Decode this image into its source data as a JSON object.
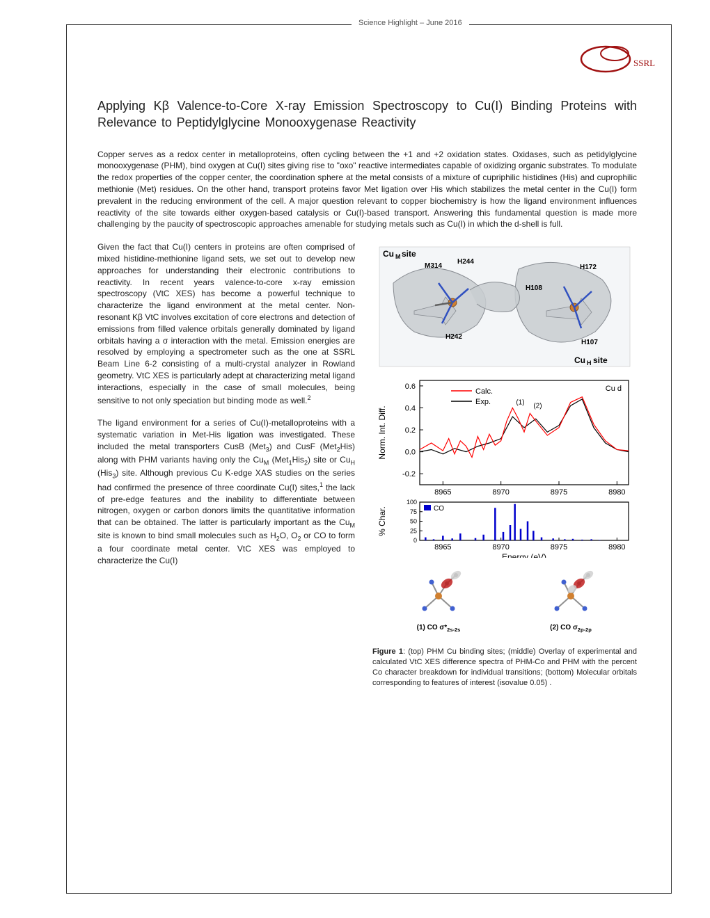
{
  "header": {
    "label": "Science Highlight – June 2016",
    "logo_text": "SSRL",
    "logo_color": "#a01010"
  },
  "title": "Applying Kβ Valence-to-Core X‑ray Emission Spectroscopy to Cu(I) Binding Proteins with Relevance to Peptidylglycine Monooxygenase Reactivity",
  "paragraphs": {
    "p1": "Copper serves as a redox center in metalloproteins, often cycling between the +1 and +2 oxidation states. Oxidases, such as petidylglycine monooxygenase (PHM), bind oxygen at Cu(I) sites giving rise to \"oxo\" reactive intermediates capable of oxidizing organic substrates. To modulate the redox properties of the copper center, the coordination sphere at the metal consists of a mixture of cupriphilic histidines (His) and cuprophilic methionie (Met) residues. On the other hand, transport proteins favor Met ligation over His which stabilizes the metal center in the Cu(I) form prevalent in the reducing environment of the cell. A major question relevant to copper biochemistry is how the ligand environment influences reactivity of the site towards either oxygen-based catalysis or Cu(I)-based transport.  Answering this fundamental question is made more challenging by the paucity of spectroscopic approaches amenable for studying metals such as Cu(I) in which the d-shell is full.",
    "p2_pre": "Given the fact that Cu(I) centers in proteins are often comprised of mixed histidine-methionine ligand sets, we set out to develop new approaches for understanding their electronic contributions to reactivity.  In recent years valence-to-core x-ray emission spectroscopy (VtC XES) has become a powerful technique to characterize the ligand environment at the metal center. Non-resonant Kβ VtC involves excitation of core electrons and detection of emissions from filled valence orbitals generally dominated by ligand orbitals having a σ interaction with the metal. Emission energies are resolved by employing a spectrometer such as the one at SSRL Beam Line 6-2 consisting of a multi-crystal analyzer in Rowland geometry. VtC XES is particularly adept at characterizing metal ligand interactions, especially in the case of small molecules, being sensitive to not only speciation but binding mode as well.",
    "p2_sup": "2",
    "p3_pre": "The ligand environment for a series of Cu(I)-metalloproteins with a systematic variation in Met-His ligation was investigated. These included the metal transporters CusB (Met",
    "p3_sub1": "3",
    "p3_mid1": ") and CusF (Met",
    "p3_sub2": "2",
    "p3_mid2": "His) along with PHM variants having only the Cu",
    "p3_sub3": "M",
    "p3_mid3": " (Met",
    "p3_sub4": "1",
    "p3_mid4": "His",
    "p3_sub5": "2",
    "p3_mid5": ") site or Cu",
    "p3_sub6": "H",
    "p3_mid6": " (His",
    "p3_sub7": "3",
    "p3_mid7": ") site. Although previous Cu K-edge XAS studies on the series had confirmed the presence of three coordinate Cu(I) sites,",
    "p3_sup1": "1",
    "p3_mid8": " the lack of pre-edge features and the inability to differentiate between nitrogen, oxygen or carbon donors limits the quantitative information that can be obtained. The latter is particularly important as the Cu",
    "p3_sub8": "M",
    "p3_mid9": " site is known to bind small molecules such as H",
    "p3_sub9": "2",
    "p3_mid10": "O, O",
    "p3_sub10": "2",
    "p3_mid11": " or CO to form a four coordinate metal center. VtC XES was employed to characterize the Cu(I)"
  },
  "figure": {
    "protein": {
      "site_m_label": "CuM site",
      "site_h_label": "CuH site",
      "residues": {
        "m314": "M314",
        "h244": "H244",
        "h172": "H172",
        "h108": "H108",
        "h242": "H242",
        "h107": "H107"
      },
      "ribbon_color": "#c8ccd0",
      "ribbon_dark": "#888c92",
      "cu_color": "#d08030",
      "stick_n_color": "#3050c0",
      "stick_c_color": "#606060"
    },
    "chart_top": {
      "type": "line",
      "title_top_right": "Cu d",
      "legend": [
        {
          "label": "Calc.",
          "color": "#ff0000"
        },
        {
          "label": "Exp.",
          "color": "#000000"
        }
      ],
      "annotations": [
        "(1)",
        "(2)"
      ],
      "ylabel": "Norm. Int. Diff.",
      "xlim": [
        8963,
        8981
      ],
      "ylim": [
        -0.3,
        0.65
      ],
      "xticks": [
        8965,
        8970,
        8975,
        8980
      ],
      "yticks": [
        -0.2,
        0.0,
        0.2,
        0.4,
        0.6
      ],
      "calc_data": {
        "x": [
          8963,
          8964,
          8965,
          8965.5,
          8966,
          8966.5,
          8967,
          8967.5,
          8968,
          8968.5,
          8969,
          8969.5,
          8970,
          8970.5,
          8971,
          8971.5,
          8972,
          8972.5,
          8973,
          8974,
          8975,
          8976,
          8977,
          8978,
          8979,
          8980,
          8981
        ],
        "y": [
          0.02,
          0.08,
          0.01,
          0.12,
          -0.02,
          0.1,
          0.05,
          -0.05,
          0.14,
          0.02,
          0.16,
          0.06,
          0.1,
          0.28,
          0.4,
          0.3,
          0.18,
          0.35,
          0.28,
          0.15,
          0.22,
          0.45,
          0.5,
          0.25,
          0.1,
          0.02,
          0.01
        ]
      },
      "exp_data": {
        "x": [
          8963,
          8964,
          8965,
          8966,
          8967,
          8968,
          8969,
          8970,
          8971,
          8972,
          8973,
          8974,
          8975,
          8976,
          8977,
          8978,
          8979,
          8980,
          8981
        ],
        "y": [
          0.0,
          0.02,
          -0.02,
          0.03,
          0.0,
          0.05,
          0.08,
          0.12,
          0.32,
          0.22,
          0.3,
          0.18,
          0.24,
          0.42,
          0.48,
          0.22,
          0.08,
          0.02,
          0.0
        ]
      },
      "background_color": "#ffffff",
      "grid_color": "#000000",
      "line_width": 1.2
    },
    "chart_bottom": {
      "type": "bar",
      "ylabel": "% Char.",
      "xlabel": "Energy (eV)",
      "legend_label": "CO",
      "legend_color": "#0000cc",
      "xlim": [
        8963,
        8981
      ],
      "ylim": [
        0,
        100
      ],
      "xticks": [
        8965,
        8970,
        8975,
        8980
      ],
      "yticks": [
        0,
        25,
        50,
        75,
        100
      ],
      "bars": {
        "x": [
          8963.5,
          8964.2,
          8965,
          8965.8,
          8966.5,
          8967.8,
          8968.5,
          8969.5,
          8970.2,
          8970.8,
          8971.2,
          8971.7,
          8972.3,
          8972.8,
          8973.5,
          8974.5,
          8975.5,
          8976.2,
          8977,
          8977.8,
          8978.5
        ],
        "heights": [
          8,
          3,
          12,
          5,
          18,
          6,
          15,
          85,
          22,
          40,
          95,
          30,
          50,
          25,
          8,
          5,
          3,
          4,
          2,
          3,
          1
        ]
      },
      "bar_color": "#0000cc",
      "bar_width": 0.15
    },
    "orbitals": {
      "orb1": {
        "label_pre": "(1) CO σ*",
        "label_sub": "2s-2s",
        "lobe_pos_color": "#c02020",
        "lobe_neg_color": "#d0d0d0"
      },
      "orb2": {
        "label_pre": "(2) CO σ",
        "label_sub": "2p-2p",
        "lobe_pos_color": "#c02020",
        "lobe_neg_color": "#d0d0d0"
      },
      "atom_colors": {
        "cu": "#d08030",
        "n": "#4060d0",
        "c": "#808080",
        "h": "#e0e0e0",
        "bond": "#909090"
      }
    },
    "caption_bold": "Figure 1",
    "caption_text": ": (top) PHM Cu binding sites; (middle) Overlay of experimental and calculated VtC XES difference spectra of PHM-Co and PHM with the percent Co character breakdown for individual transitions; (bottom) Molecular orbitals corresponding to features of interest (isovalue 0.05) ."
  }
}
